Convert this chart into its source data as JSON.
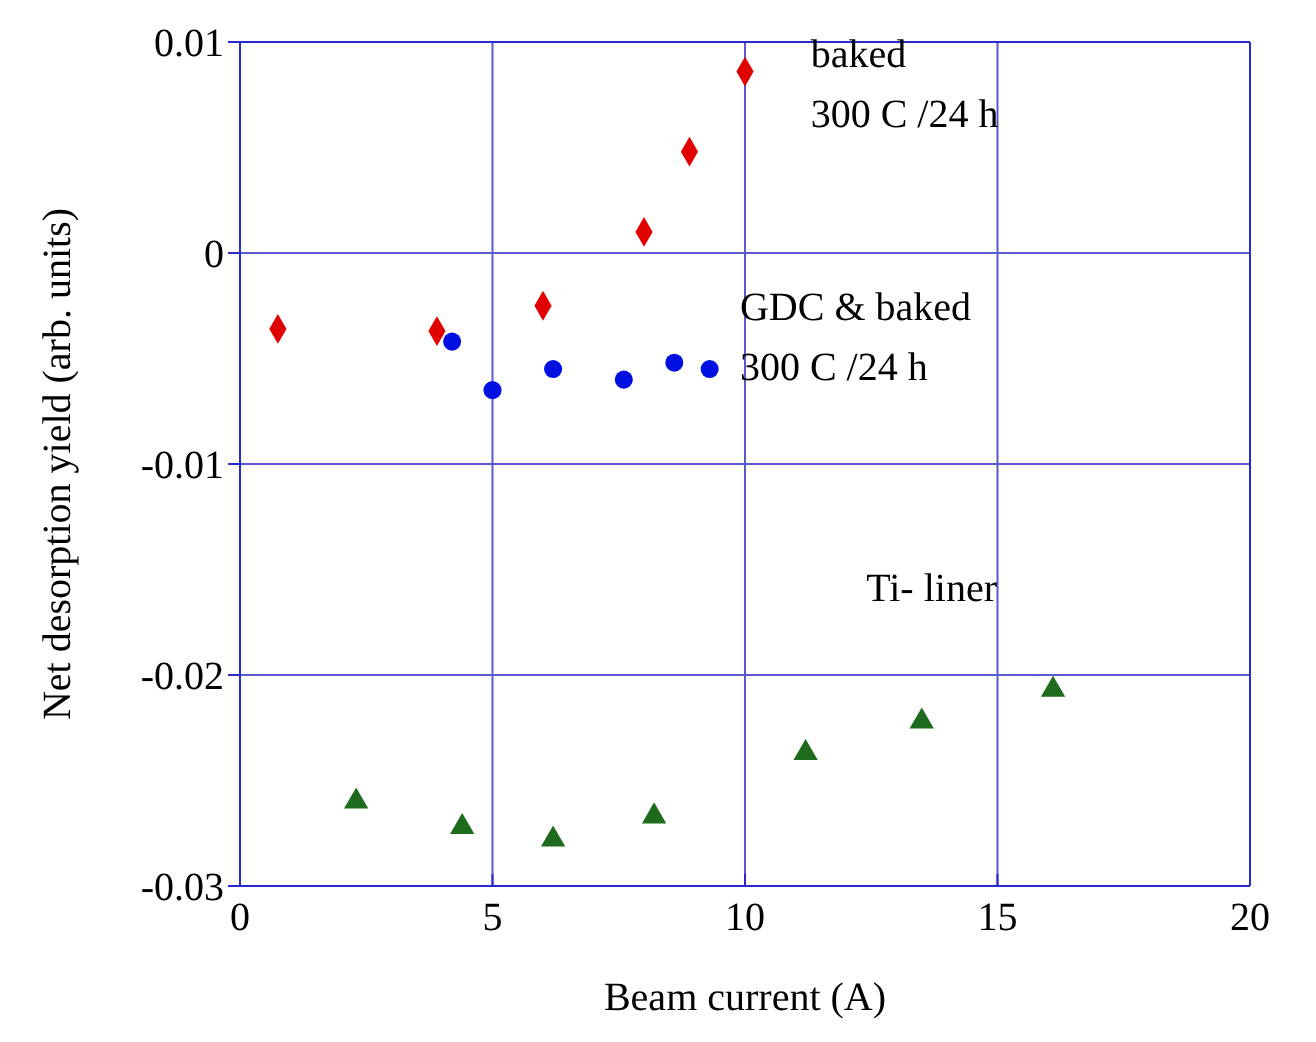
{
  "chart_data": {
    "type": "scatter",
    "xlabel": "Beam  current (A)",
    "ylabel": "Net desorption yield (arb. units)",
    "xlim": [
      0,
      20
    ],
    "xticks": [
      0,
      5,
      10,
      15,
      20
    ],
    "ylim": [
      -0.03,
      0.01
    ],
    "yticks": [
      -0.03,
      -0.02,
      -0.01,
      0,
      0.01
    ],
    "grid": true,
    "series": [
      {
        "name": "baked\n300 C /24 h",
        "color": "#e00000",
        "marker": "diamond",
        "x": [
          0.75,
          3.9,
          6.0,
          8.0,
          8.9,
          10.0
        ],
        "values": [
          -0.0036,
          -0.0037,
          -0.0025,
          0.001,
          0.0048,
          0.0086
        ]
      },
      {
        "name": "GDC & baked\n300 C /24 h",
        "color": "#0010e0",
        "marker": "circle",
        "x": [
          4.2,
          5.0,
          6.2,
          7.6,
          8.6,
          9.3
        ],
        "values": [
          -0.0042,
          -0.0065,
          -0.0055,
          -0.006,
          -0.0052,
          -0.0055
        ]
      },
      {
        "name": "Ti- liner",
        "color": "#1e6b1e",
        "marker": "triangle",
        "x": [
          2.3,
          4.4,
          6.2,
          8.2,
          11.2,
          13.5,
          16.1
        ],
        "values": [
          -0.026,
          -0.0272,
          -0.0278,
          -0.0267,
          -0.0237,
          -0.0222,
          -0.0207
        ]
      }
    ]
  }
}
